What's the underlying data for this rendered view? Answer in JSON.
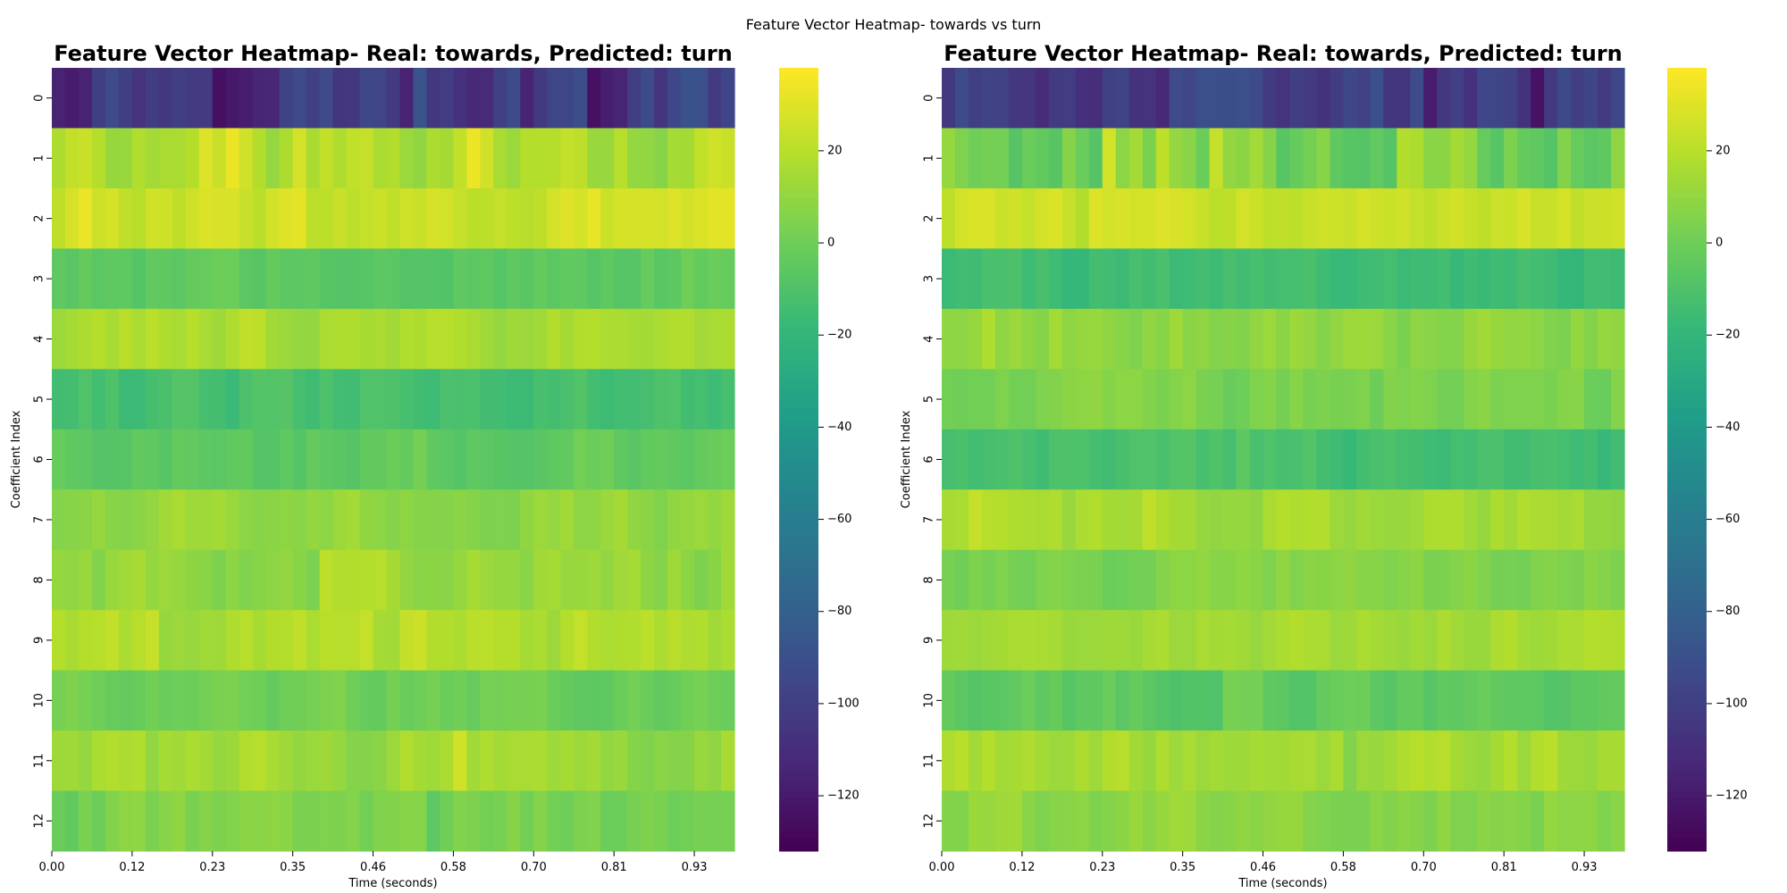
{
  "suptitle": "Feature Vector Heatmap- towards vs turn",
  "colormap": [
    "#440154",
    "#482878",
    "#3e4989",
    "#31688e",
    "#26828e",
    "#1f9e89",
    "#35b779",
    "#6ece58",
    "#b5de2b",
    "#fde725"
  ],
  "chart_data": [
    {
      "type": "heatmap",
      "title": "Feature Vector Heatmap- Real: towards, Predicted: turn",
      "xlabel": "Time (seconds)",
      "ylabel": "Coefficient Index",
      "x_tick_labels": [
        "0.00",
        "0.12",
        "0.23",
        "0.35",
        "0.46",
        "0.58",
        "0.70",
        "0.81",
        "0.93"
      ],
      "y_tick_labels": [
        "0",
        "1",
        "2",
        "3",
        "4",
        "5",
        "6",
        "7",
        "8",
        "9",
        "10",
        "11",
        "12"
      ],
      "n_frames": 51,
      "colorbar": {
        "vmin": -132,
        "vmax": 38,
        "ticks": [
          20,
          0,
          -20,
          -40,
          -60,
          -80,
          -100,
          -120
        ],
        "tick_labels": [
          "20",
          "0",
          "−20",
          "−40",
          "−60",
          "−80",
          "−100",
          "−120"
        ]
      },
      "rows": [
        {
          "index": "0",
          "typical": -100,
          "range": [
            -125,
            -85
          ]
        },
        {
          "index": "1",
          "typical": 15,
          "range": [
            5,
            36
          ]
        },
        {
          "index": "2",
          "typical": 25,
          "range": [
            18,
            36
          ]
        },
        {
          "index": "3",
          "typical": -5,
          "range": [
            -12,
            2
          ]
        },
        {
          "index": "4",
          "typical": 15,
          "range": [
            8,
            25
          ]
        },
        {
          "index": "5",
          "typical": -12,
          "range": [
            -18,
            -4
          ]
        },
        {
          "index": "6",
          "typical": -5,
          "range": [
            -13,
            3
          ]
        },
        {
          "index": "7",
          "typical": 10,
          "range": [
            3,
            20
          ]
        },
        {
          "index": "8",
          "typical": 10,
          "range": [
            3,
            25
          ]
        },
        {
          "index": "9",
          "typical": 18,
          "range": [
            10,
            28
          ]
        },
        {
          "index": "10",
          "typical": 0,
          "range": [
            -8,
            6
          ]
        },
        {
          "index": "11",
          "typical": 12,
          "range": [
            5,
            28
          ]
        },
        {
          "index": "12",
          "typical": 3,
          "range": [
            -10,
            10
          ]
        }
      ]
    },
    {
      "type": "heatmap",
      "title": "Feature Vector Heatmap- Real: towards, Predicted: turn",
      "xlabel": "Time (seconds)",
      "ylabel": "Coefficient Index",
      "x_tick_labels": [
        "0.00",
        "0.12",
        "0.23",
        "0.35",
        "0.46",
        "0.58",
        "0.70",
        "0.81",
        "0.93"
      ],
      "y_tick_labels": [
        "0",
        "1",
        "2",
        "3",
        "4",
        "5",
        "6",
        "7",
        "8",
        "9",
        "10",
        "11",
        "12"
      ],
      "n_frames": 51,
      "colorbar": {
        "vmin": -132,
        "vmax": 38,
        "ticks": [
          20,
          0,
          -20,
          -40,
          -60,
          -80,
          -100,
          -120
        ],
        "tick_labels": [
          "20",
          "0",
          "−20",
          "−40",
          "−60",
          "−80",
          "−100",
          "−120"
        ]
      },
      "rows": [
        {
          "index": "0",
          "typical": -100,
          "range": [
            -130,
            -90
          ]
        },
        {
          "index": "1",
          "typical": 3,
          "range": [
            -8,
            35
          ]
        },
        {
          "index": "2",
          "typical": 25,
          "range": [
            18,
            35
          ]
        },
        {
          "index": "3",
          "typical": -15,
          "range": [
            -22,
            -8
          ]
        },
        {
          "index": "4",
          "typical": 8,
          "range": [
            0,
            18
          ]
        },
        {
          "index": "5",
          "typical": 5,
          "range": [
            -3,
            12
          ]
        },
        {
          "index": "6",
          "typical": -12,
          "range": [
            -18,
            -5
          ]
        },
        {
          "index": "7",
          "typical": 15,
          "range": [
            8,
            25
          ]
        },
        {
          "index": "8",
          "typical": 5,
          "range": [
            -2,
            12
          ]
        },
        {
          "index": "9",
          "typical": 15,
          "range": [
            8,
            22
          ]
        },
        {
          "index": "10",
          "typical": -5,
          "range": [
            -12,
            3
          ]
        },
        {
          "index": "11",
          "typical": 15,
          "range": [
            5,
            25
          ]
        },
        {
          "index": "12",
          "typical": 8,
          "range": [
            0,
            15
          ]
        }
      ]
    }
  ]
}
